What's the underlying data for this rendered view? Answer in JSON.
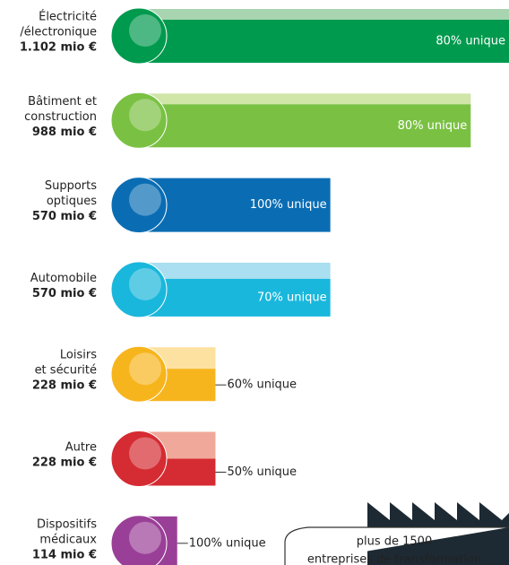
{
  "chart_data": {
    "type": "bar",
    "categories": [
      [
        "Électricité",
        "/électronique"
      ],
      [
        "Bâtiment et",
        "construction"
      ],
      [
        "Supports",
        "optiques"
      ],
      [
        "Automobile"
      ],
      [
        "Loisirs",
        "et sécurité"
      ],
      [
        "Autre"
      ],
      [
        "Dispositifs",
        "médicaux"
      ]
    ],
    "values": [
      1102,
      988,
      570,
      570,
      228,
      228,
      114
    ],
    "value_labels": [
      "1.102 mio €",
      "988 mio €",
      "570 mio €",
      "570 mio €",
      "228 mio €",
      "228 mio €",
      "114 mio €"
    ],
    "unique": [
      80,
      80,
      100,
      70,
      60,
      50,
      100
    ],
    "unique_labels": [
      "80% unique",
      "80% unique",
      "100% unique",
      "70% unique",
      "60% unique",
      "50% unique",
      "100% unique"
    ],
    "colors": [
      "#009a4e",
      "#7ac143",
      "#0a6db4",
      "#1ab7dc",
      "#f7b51d",
      "#d52b32",
      "#9a3f97"
    ],
    "light_colors": [
      "#a8d5b0",
      "#cfe6a8",
      "#a9cbe8",
      "#a9dff0",
      "#fde1a0",
      "#efa899",
      "#d6b2d5"
    ],
    "xlim": [
      0,
      1102
    ]
  },
  "callout": {
    "lines": [
      "plus de 1500",
      "entreprises de transformation"
    ]
  }
}
